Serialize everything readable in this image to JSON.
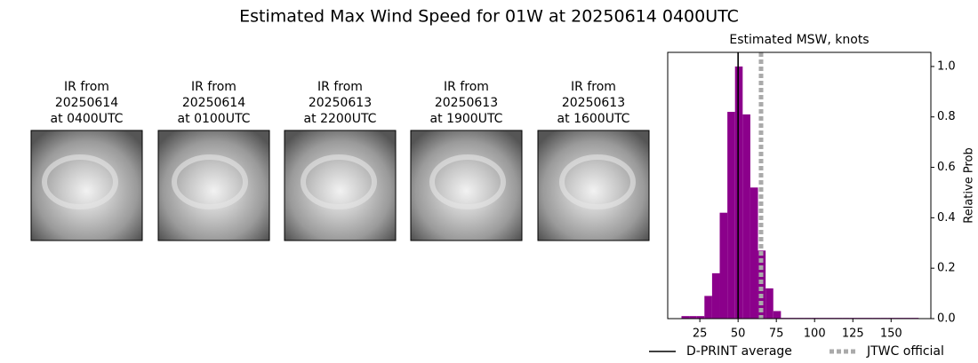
{
  "title": "Estimated Max Wind Speed for 01W at 20250614 0400UTC",
  "panels": [
    {
      "lines": [
        "IR from",
        "20250614",
        "at 0400UTC"
      ]
    },
    {
      "lines": [
        "IR from",
        "20250614",
        "at 0100UTC"
      ]
    },
    {
      "lines": [
        "IR from",
        "20250613",
        "at 2200UTC"
      ]
    },
    {
      "lines": [
        "IR from",
        "20250613",
        "at 1900UTC"
      ]
    },
    {
      "lines": [
        "IR from",
        "20250613",
        "at 1600UTC"
      ]
    }
  ],
  "chart_data": {
    "type": "histogram",
    "title": "Estimated MSW, knots",
    "ylabel": "Relative Prob",
    "color": "#8b008b",
    "bins": [
      13,
      18,
      23,
      28,
      33,
      38,
      43,
      48,
      53,
      58,
      63,
      68,
      73,
      78,
      83,
      88,
      93,
      98,
      103,
      108,
      113,
      118,
      123,
      128,
      133,
      138,
      143,
      148,
      153,
      158,
      163,
      168
    ],
    "values": [
      0.01,
      0.01,
      0.01,
      0.09,
      0.18,
      0.42,
      0.82,
      1.0,
      0.81,
      0.52,
      0.27,
      0.12,
      0.03,
      0.003,
      0.003,
      0.003,
      0.003,
      0.003,
      0.003,
      0.003,
      0.003,
      0.003,
      0.003,
      0.003,
      0.003,
      0.003,
      0.003,
      0.003,
      0.003,
      0.003,
      0.003
    ],
    "xlim": [
      4,
      176
    ],
    "ylim": [
      0,
      1.056
    ],
    "xticks": [
      25,
      50,
      75,
      100,
      125,
      150
    ],
    "yticks": [
      {
        "value": 0,
        "label": "0.0"
      },
      0.2,
      0.4,
      0.6,
      0.8,
      {
        "value": 1,
        "label": "1.0"
      }
    ],
    "y_axis_side": "right",
    "lines": [
      {
        "name": "D-PRINT average",
        "value": 50,
        "color": "#000000",
        "style": "solid"
      },
      {
        "name": "JTWC official",
        "value": 65,
        "color": "#aaaaaa",
        "style": "dotted"
      }
    ],
    "legend": "lower center"
  }
}
